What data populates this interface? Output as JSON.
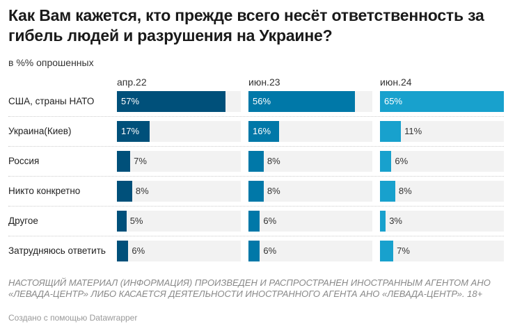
{
  "title": "Как Вам кажется, кто прежде всего несёт ответственность за гибель людей и разрушения на Украине?",
  "subtitle": "в %% опрошенных",
  "notes": "НАСТОЯЩИЙ МАТЕРИАЛ (ИНФОРМАЦИЯ) ПРОИЗВЕДЕН И РАСПРОСТРАНЕН ИНОСТРАННЫМ АГЕНТОМ АНО «ЛЕВАДА-ЦЕНТР» ЛИБО КАСАЕТСЯ ДЕЯТЕЛЬНОСТИ ИНОСТРАННОГО АГЕНТА АНО «ЛЕВАДА-ЦЕНТР». 18+",
  "credit": "Создано с помощью Datawrapper",
  "chart_data": {
    "type": "bar",
    "orientation": "horizontal",
    "layout": "small-multiples columns",
    "unit": "%",
    "xlim": [
      0,
      65
    ],
    "grid": false,
    "categories": [
      "США, страны НАТО",
      "Украина(Киев)",
      "Россия",
      "Никто конкретно",
      "Другое",
      "Затрудняюсь ответить"
    ],
    "series": [
      {
        "name": "апр.22",
        "color": "#00507a",
        "values": [
          57,
          17,
          7,
          8,
          5,
          6
        ]
      },
      {
        "name": "июн.23",
        "color": "#0078a8",
        "values": [
          56,
          16,
          8,
          8,
          6,
          6
        ]
      },
      {
        "name": "июн.24",
        "color": "#18a1cd",
        "values": [
          65,
          11,
          6,
          8,
          3,
          7
        ]
      }
    ],
    "track_color": "#f2f2f2"
  }
}
